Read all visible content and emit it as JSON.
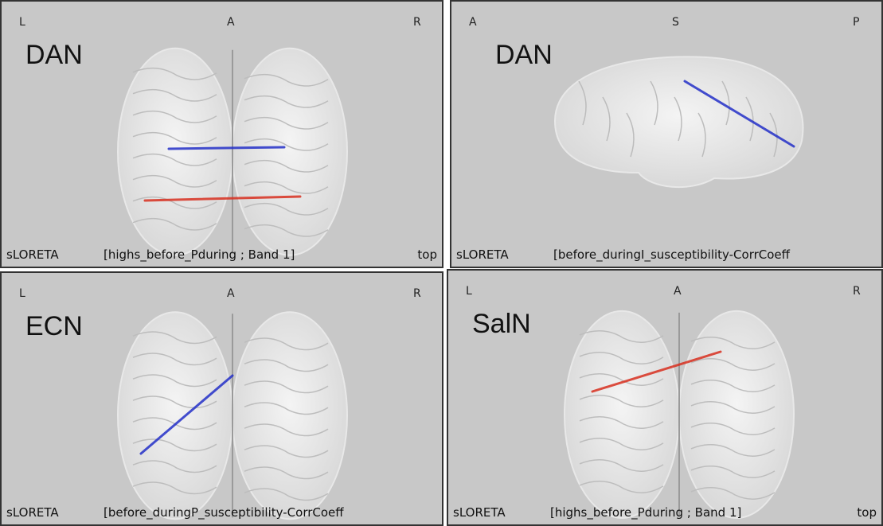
{
  "panels": [
    {
      "left": "L",
      "center": "A",
      "right": "R",
      "network": "DAN",
      "software": "sLORETA",
      "description": "[highs_before_Pduring ; Band 1]",
      "view": "top"
    },
    {
      "left": "A",
      "center": "S",
      "right": "P",
      "network": "DAN",
      "software": "sLORETA",
      "description": "[before_duringI_susceptibility-CorrCoeff"
    },
    {
      "left": "L",
      "center": "A",
      "right": "R",
      "network": "ECN",
      "software": "sLORETA",
      "description": "[before_duringP_susceptibility-CorrCoeff"
    },
    {
      "left": "L",
      "center": "A",
      "right": "R",
      "network": "SalN",
      "software": "sLORETA",
      "description": "[highs_before_Pduring ; Band 1]",
      "view": "top"
    }
  ]
}
